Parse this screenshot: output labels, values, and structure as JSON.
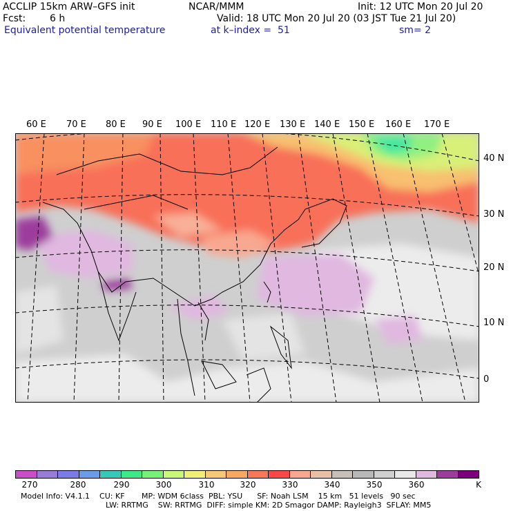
{
  "header": {
    "model": "ACCLIP 15km ARW–GFS init",
    "org": "NCAR/MMM",
    "init": "Init: 12 UTC Mon 20 Jul 20",
    "fcst_label": "Fcst:",
    "fcst_value": "6 h",
    "valid": "Valid: 18 UTC Mon 20 Jul 20 (03 JST Tue 21 Jul 20)",
    "field": "Equivalent potential temperature",
    "level": "at k–index =  51",
    "smooth": "sm= 2"
  },
  "map": {
    "lon_labels": [
      "60 E",
      "70 E",
      "80 E",
      "90 E",
      "100 E",
      "110 E",
      "120 E",
      "130 E",
      "140 E",
      "150 E",
      "160 E",
      "170 E"
    ],
    "lat_labels": [
      "40 N",
      "30 N",
      "20 N",
      "10 N",
      "0"
    ]
  },
  "colorbar": {
    "colors": [
      "#c84fc8",
      "#9a7cd8",
      "#7c7ce8",
      "#6a9ce8",
      "#36c8b8",
      "#3ce888",
      "#78f078",
      "#c8f878",
      "#f0f078",
      "#f8c878",
      "#f8a860",
      "#f87858",
      "#f84848",
      "#f8a890",
      "#e8c0a8",
      "#c8c0b8",
      "#b8b8b8",
      "#d0d0d0",
      "#e8e8e8",
      "#e0b8e0",
      "#9c3c9c",
      "#7c007c"
    ],
    "labels": [
      "270",
      "280",
      "290",
      "300",
      "310",
      "320",
      "330",
      "340",
      "350",
      "360"
    ],
    "unit": "K"
  },
  "footer": {
    "line1": "Model Info: V4.1.1    CU: KF       MP: WDM 6class  PBL: YSU      SF: Noah LSM    15 km   51 levels   90 sec",
    "line2": "LW: RRTMG    SW: RRTMG  DIFF: simple KM: 2D Smagor DAMP: Rayleigh3  SFLAY: MM5"
  }
}
